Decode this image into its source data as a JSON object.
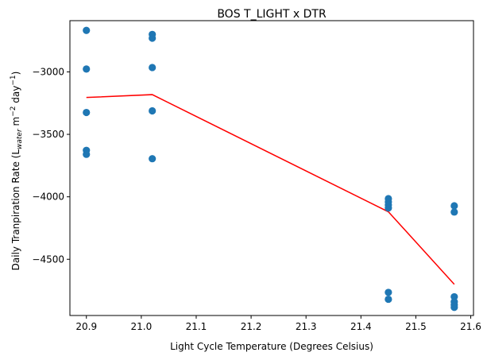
{
  "chart_data": {
    "type": "scatter",
    "title": "BOS T_LIGHT x DTR",
    "xlabel": "Light Cycle Temperature (Degrees Celsius)",
    "ylabel": {
      "prefix": "Daily Tranpiration Rate (L",
      "sub": "water",
      "mid1": " m",
      "sup1": "−2",
      "mid2": " day",
      "sup2": "−1",
      "suffix": ")"
    },
    "xlim": [
      20.87,
      21.605
    ],
    "ylim": [
      -4950,
      -2590
    ],
    "xticks": [
      {
        "value": 20.9,
        "label": "20.9"
      },
      {
        "value": 21.0,
        "label": "21.0"
      },
      {
        "value": 21.1,
        "label": "21.1"
      },
      {
        "value": 21.2,
        "label": "21.2"
      },
      {
        "value": 21.3,
        "label": "21.3"
      },
      {
        "value": 21.4,
        "label": "21.4"
      },
      {
        "value": 21.5,
        "label": "21.5"
      },
      {
        "value": 21.6,
        "label": "21.6"
      }
    ],
    "yticks": [
      {
        "value": -3000,
        "label": "−3000"
      },
      {
        "value": -3500,
        "label": "−3500"
      },
      {
        "value": -4000,
        "label": "−4000"
      },
      {
        "value": -4500,
        "label": "−4500"
      }
    ],
    "points": [
      {
        "x": 20.9,
        "y": -2668
      },
      {
        "x": 20.9,
        "y": -2977
      },
      {
        "x": 20.9,
        "y": -3325
      },
      {
        "x": 20.9,
        "y": -3628
      },
      {
        "x": 20.9,
        "y": -3660
      },
      {
        "x": 21.02,
        "y": -2700
      },
      {
        "x": 21.02,
        "y": -2730
      },
      {
        "x": 21.02,
        "y": -2965
      },
      {
        "x": 21.02,
        "y": -3312
      },
      {
        "x": 21.02,
        "y": -3695
      },
      {
        "x": 21.45,
        "y": -4015
      },
      {
        "x": 21.45,
        "y": -4040
      },
      {
        "x": 21.45,
        "y": -4065
      },
      {
        "x": 21.45,
        "y": -4090
      },
      {
        "x": 21.45,
        "y": -4765
      },
      {
        "x": 21.45,
        "y": -4820
      },
      {
        "x": 21.57,
        "y": -4072
      },
      {
        "x": 21.57,
        "y": -4122
      },
      {
        "x": 21.57,
        "y": -4800
      },
      {
        "x": 21.57,
        "y": -4840
      },
      {
        "x": 21.57,
        "y": -4865
      },
      {
        "x": 21.57,
        "y": -4885
      }
    ],
    "line": {
      "x": [
        20.9,
        21.02,
        21.45,
        21.57
      ],
      "y": [
        -3205,
        -3182,
        -4120,
        -4700
      ]
    },
    "colors": {
      "points": "#1f77b4",
      "line": "#ff0000"
    },
    "grid": false,
    "legend": "none"
  }
}
